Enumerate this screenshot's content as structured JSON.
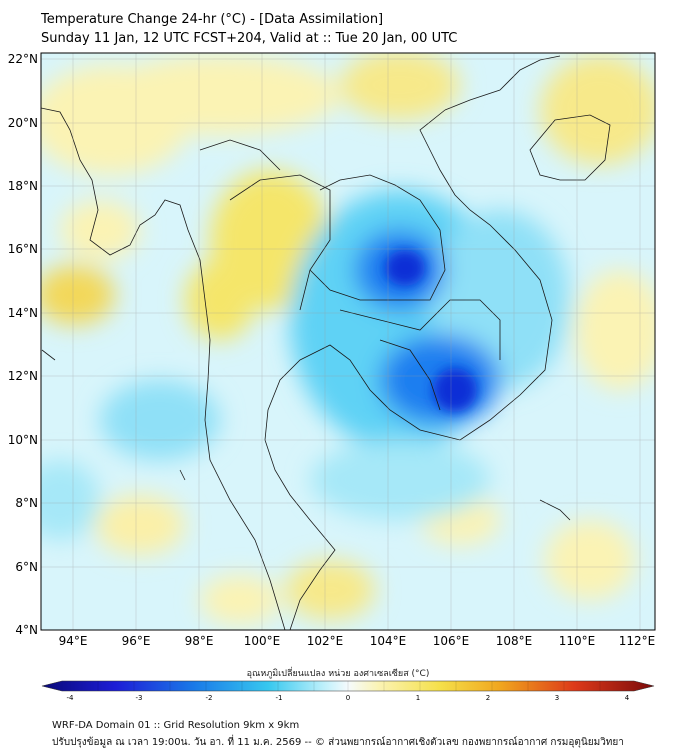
{
  "title": {
    "line1": "Temperature Change 24-hr (°C) - [Data Assimilation]",
    "line2": "Sunday 11 Jan, 12 UTC FCST+204, Valid at :: Tue 20 Jan, 00 UTC"
  },
  "map": {
    "lat_labels": [
      "22°N",
      "20°N",
      "18°N",
      "16°N",
      "14°N",
      "12°N",
      "10°N",
      "8°N",
      "6°N",
      "4°N"
    ],
    "lon_labels": [
      "94°E",
      "96°E",
      "98°E",
      "100°E",
      "102°E",
      "104°E",
      "106°E",
      "108°E",
      "110°E",
      "112°E"
    ],
    "lat_range": [
      4,
      22
    ],
    "lon_range": [
      93,
      112.5
    ],
    "colors": {
      "strong_cool": "#0a2fd6",
      "cool": "#1e7ef0",
      "light_cool": "#5fd2f5",
      "pale_cool": "#bdf0fb",
      "warm": "#f5e66a",
      "pale_warm": "#fbf3b4",
      "neutral": "#f3fbfd"
    }
  },
  "colorbar": {
    "title": "อุณหภูมิเปลี่ยนแปลง หน่วย องศาเซลเซียส (°C)",
    "tick_labels": [
      "-4",
      "-3",
      "-2",
      "-1",
      "0",
      "1",
      "2",
      "3",
      "4"
    ],
    "range": [
      -4,
      4
    ]
  },
  "footer": {
    "line1": "WRF-DA Domain 01 :: Grid Resolution 9km x 9km",
    "line2": "ปรับปรุงข้อมูล ณ เวลา 19:00น. วัน อา. ที่ 11 ม.ค. 2569 -- © ส่วนพยากรณ์อากาศเชิงตัวเลข กองพยากรณ์อากาศ กรมอุตุนิยมวิทยา"
  }
}
